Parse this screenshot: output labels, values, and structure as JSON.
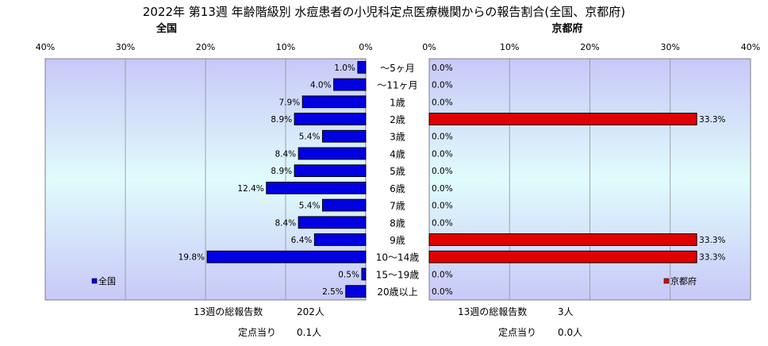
{
  "title": "2022年 第13週 年齢階級別 水痘患者の小児科定点医療機関からの報告割合(全国、京都府)",
  "axis_ticks": [
    "40%",
    "30%",
    "20%",
    "10%",
    "0%"
  ],
  "axis_ticks_right": [
    "0%",
    "10%",
    "20%",
    "30%",
    "40%"
  ],
  "colors": {
    "national": "#0000e0",
    "kyoto": "#e00000",
    "plot_top": "#c8c8f8",
    "plot_mid": "#e0fcfc"
  },
  "chart_data": [
    {
      "type": "bar",
      "title": "全国",
      "orientation": "horizontal",
      "direction": "right-to-left",
      "categories": [
        "～5ヶ月",
        "～11ヶ月",
        "1歳",
        "2歳",
        "3歳",
        "4歳",
        "5歳",
        "6歳",
        "7歳",
        "8歳",
        "9歳",
        "10～14歳",
        "15～19歳",
        "20歳以上"
      ],
      "series": [
        {
          "name": "全国",
          "values": [
            1.0,
            4.0,
            7.9,
            8.9,
            5.4,
            8.4,
            8.9,
            12.4,
            5.4,
            8.4,
            6.4,
            19.8,
            0.5,
            2.5
          ]
        }
      ],
      "data_labels": [
        "1.0%",
        "4.0%",
        "7.9%",
        "8.9%",
        "5.4%",
        "8.4%",
        "8.9%",
        "12.4%",
        "5.4%",
        "8.4%",
        "6.4%",
        "19.8%",
        "0.5%",
        "2.5%"
      ],
      "xlim": [
        0,
        40
      ],
      "grid": true,
      "legend": {
        "label": "全国",
        "position": "bottom-left"
      }
    },
    {
      "type": "bar",
      "title": "京都府",
      "orientation": "horizontal",
      "direction": "left-to-right",
      "categories": [
        "～5ヶ月",
        "～11ヶ月",
        "1歳",
        "2歳",
        "3歳",
        "4歳",
        "5歳",
        "6歳",
        "7歳",
        "8歳",
        "9歳",
        "10～14歳",
        "15～19歳",
        "20歳以上"
      ],
      "series": [
        {
          "name": "京都府",
          "values": [
            0.0,
            0.0,
            0.0,
            33.3,
            0.0,
            0.0,
            0.0,
            0.0,
            0.0,
            0.0,
            33.3,
            33.3,
            0.0,
            0.0
          ]
        }
      ],
      "data_labels": [
        "0.0%",
        "0.0%",
        "0.0%",
        "33.3%",
        "0.0%",
        "0.0%",
        "0.0%",
        "0.0%",
        "0.0%",
        "0.0%",
        "33.3%",
        "33.3%",
        "0.0%",
        "0.0%"
      ],
      "xlim": [
        0,
        40
      ],
      "grid": true,
      "legend": {
        "label": "京都府",
        "position": "bottom-right"
      }
    }
  ],
  "summary": {
    "national": {
      "total_label": "13週の総報告数",
      "total_value": "202人",
      "per_label": "定点当り",
      "per_value": "0.1人"
    },
    "kyoto": {
      "total_label": "13週の総報告数",
      "total_value": "3人",
      "per_label": "定点当り",
      "per_value": "0.0人"
    }
  }
}
